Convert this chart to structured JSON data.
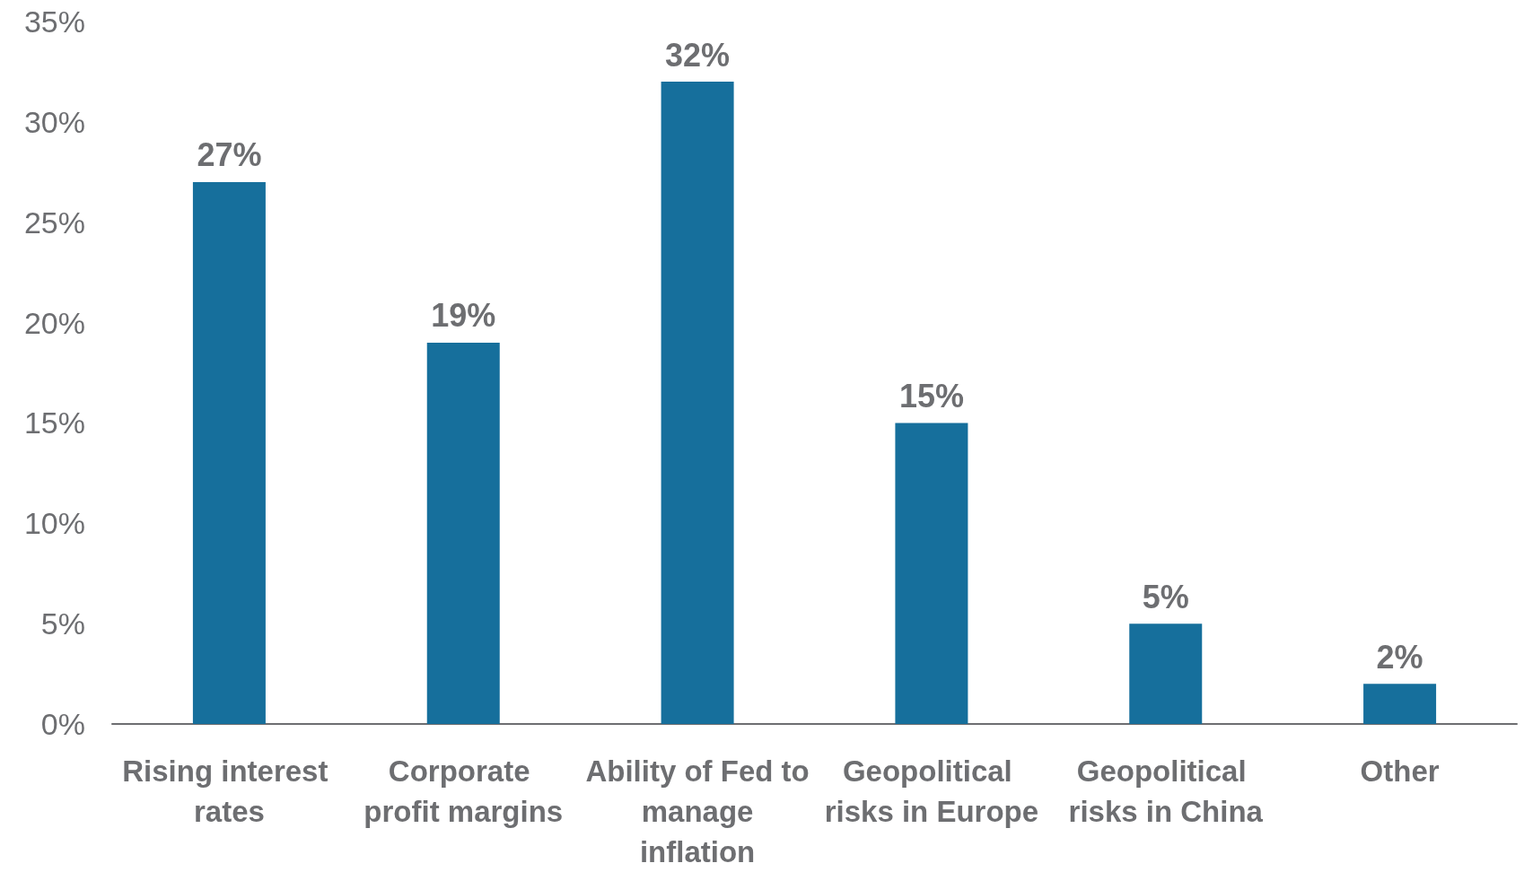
{
  "chart_data": {
    "type": "bar",
    "categories": [
      "Rising interest rates",
      "Corporate profit margins",
      "Ability of Fed to manage inflation",
      "Geopolitical risks in Europe",
      "Geopolitical risks in China",
      "Other"
    ],
    "values": [
      27,
      19,
      32,
      15,
      5,
      2
    ],
    "value_labels": [
      "27%",
      "19%",
      "32%",
      "15%",
      "5%",
      "2%"
    ],
    "color": "#166f9c",
    "ylim": [
      0,
      35
    ],
    "yticks": [
      {
        "value": 0,
        "label": "0%"
      },
      {
        "value": 5,
        "label": "5%"
      },
      {
        "value": 10,
        "label": "10%"
      },
      {
        "value": 15,
        "label": "15%"
      },
      {
        "value": 20,
        "label": "20%"
      },
      {
        "value": 25,
        "label": "25%"
      },
      {
        "value": 30,
        "label": "30%"
      },
      {
        "value": 35,
        "label": "35%"
      }
    ],
    "grid": false
  }
}
